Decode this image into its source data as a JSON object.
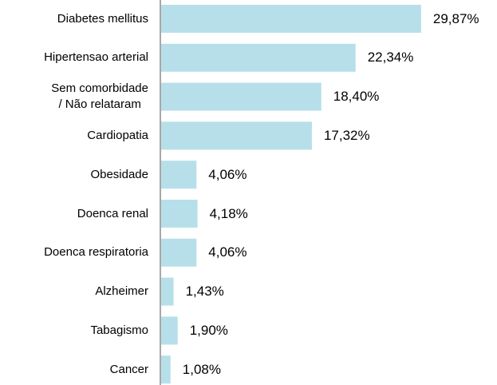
{
  "chart_data": {
    "type": "bar",
    "orientation": "horizontal",
    "categories": [
      "Diabetes mellitus",
      "Hipertensao arterial",
      "Sem comorbidade\n/ Não relataram",
      "Cardiopatia",
      "Obesidade",
      "Doenca renal",
      "Doenca respiratoria",
      "Alzheimer",
      "Tabagismo",
      "Cancer"
    ],
    "values": [
      29.87,
      22.34,
      18.4,
      17.32,
      4.06,
      4.18,
      4.06,
      1.43,
      1.9,
      1.08
    ],
    "value_labels": [
      "29,87%",
      "22,34%",
      "18,40%",
      "17,32%",
      "4,06%",
      "4,18%",
      "4,06%",
      "1,43%",
      "1,90%",
      "1,08%"
    ],
    "color": "#b7dfe9"
  }
}
